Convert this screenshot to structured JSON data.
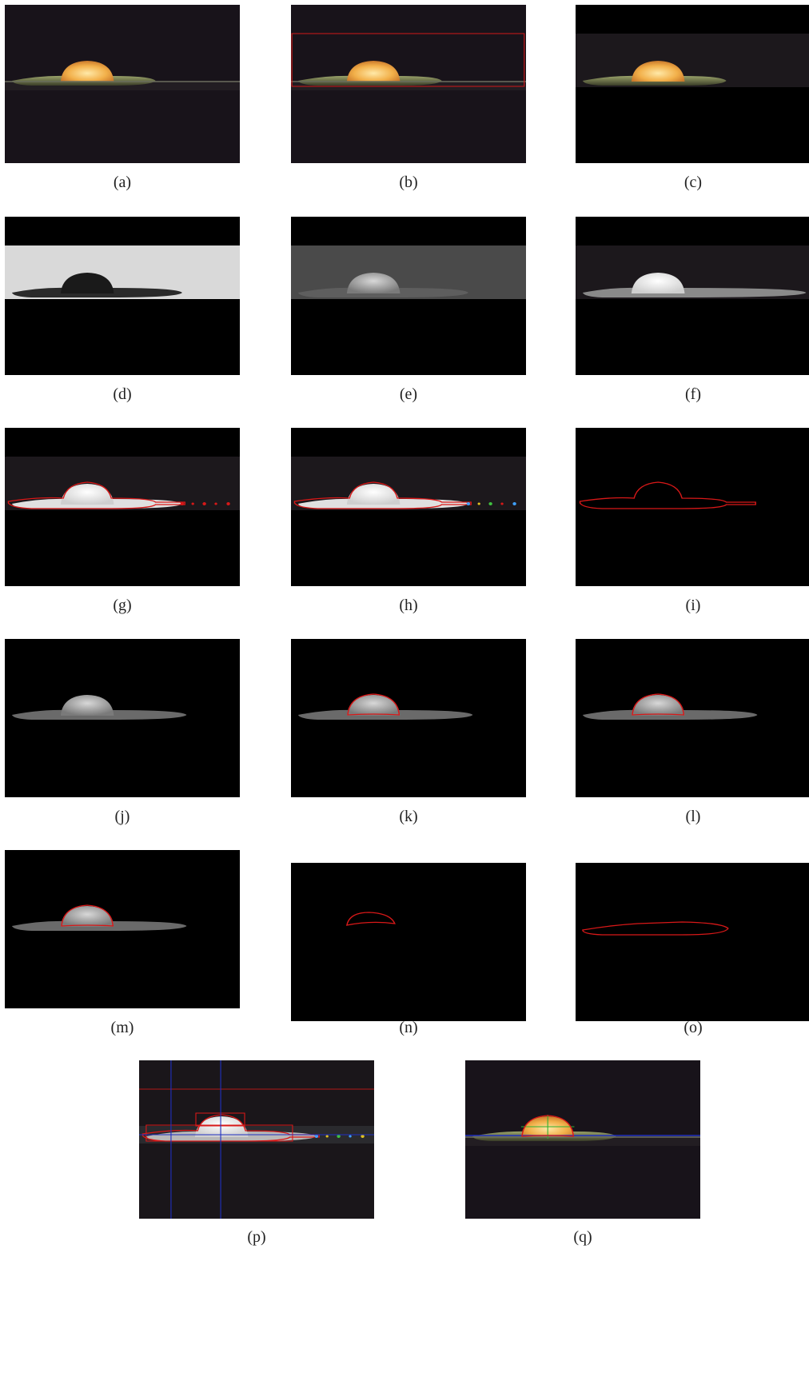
{
  "panels": [
    {
      "label": "(a)"
    },
    {
      "label": "(b)"
    },
    {
      "label": "(c)"
    },
    {
      "label": "(d)"
    },
    {
      "label": "(e)"
    },
    {
      "label": "(f)"
    },
    {
      "label": "(g)"
    },
    {
      "label": "(h)"
    },
    {
      "label": "(i)"
    },
    {
      "label": "(j)"
    },
    {
      "label": "(k)"
    },
    {
      "label": "(l)"
    },
    {
      "label": "(m)"
    },
    {
      "label": "(n)"
    },
    {
      "label": "(o)"
    },
    {
      "label": "(p)"
    },
    {
      "label": "(q)"
    }
  ]
}
